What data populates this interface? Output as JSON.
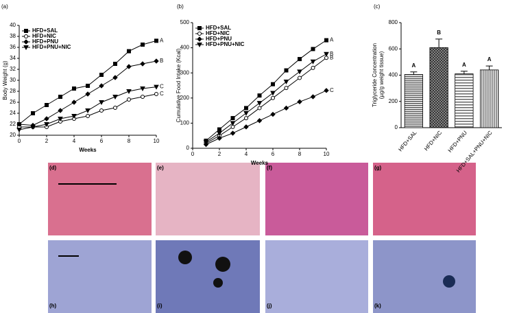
{
  "chart_data": [
    {
      "type": "line",
      "panel": "(a)",
      "xlabel": "Weeks",
      "ylabel": "Body Weight (g)",
      "x": [
        0,
        1,
        2,
        3,
        4,
        5,
        6,
        7,
        8,
        9,
        10
      ],
      "xlim": [
        0,
        10
      ],
      "xticks": [
        0,
        2,
        4,
        6,
        8,
        10
      ],
      "ylim": [
        20,
        40
      ],
      "yticks": [
        20,
        22,
        24,
        26,
        28,
        30,
        32,
        34,
        36,
        38,
        40
      ],
      "legend": "upper left",
      "series": [
        {
          "name": "HFD+SAL",
          "marker": "square",
          "color": "#000000",
          "label": "A",
          "values": [
            22,
            24,
            25.5,
            27,
            28.5,
            29,
            31,
            33,
            35.3,
            36.5,
            37.2
          ]
        },
        {
          "name": "HFD+NIC",
          "marker": "circle-open",
          "color": "#000000",
          "label": "C",
          "values": [
            21.5,
            21.5,
            21.5,
            22.5,
            23,
            23.5,
            24.5,
            25,
            26.5,
            27,
            27.5
          ]
        },
        {
          "name": "HFD+PNU",
          "marker": "diamond",
          "color": "#000000",
          "label": "B",
          "values": [
            22,
            21.8,
            23,
            24.5,
            26,
            27.5,
            29,
            30.5,
            32.5,
            33,
            33.5
          ]
        },
        {
          "name": "HFD+PNU+NIC",
          "marker": "triangle-down",
          "color": "#000000",
          "label": "C",
          "values": [
            21,
            21.5,
            22,
            23,
            23.5,
            24.5,
            26,
            27,
            28,
            28.5,
            28.8
          ]
        }
      ]
    },
    {
      "type": "line",
      "panel": "(b)",
      "xlabel": "Weeks",
      "ylabel": "Cumulative Food Intake (Kcal)",
      "x": [
        1,
        2,
        3,
        4,
        5,
        6,
        7,
        8,
        9,
        10
      ],
      "xlim": [
        0,
        10
      ],
      "xticks": [
        0,
        2,
        4,
        6,
        8,
        10
      ],
      "ylim": [
        0,
        500
      ],
      "yticks": [
        0,
        100,
        200,
        300,
        400,
        500
      ],
      "legend": "upper left",
      "series": [
        {
          "name": "HFD+SAL",
          "marker": "square",
          "color": "#000000",
          "label": "A",
          "values": [
            30,
            75,
            120,
            160,
            210,
            255,
            310,
            355,
            395,
            430
          ]
        },
        {
          "name": "HFD+NIC",
          "marker": "circle-open",
          "color": "#000000",
          "label": "B",
          "values": [
            20,
            50,
            85,
            120,
            160,
            200,
            240,
            280,
            320,
            360
          ]
        },
        {
          "name": "HFD+PNU",
          "marker": "diamond",
          "color": "#000000",
          "label": "C",
          "values": [
            15,
            40,
            60,
            85,
            110,
            135,
            160,
            185,
            205,
            230
          ]
        },
        {
          "name": "HFD+PNU+NIC",
          "marker": "triangle-down",
          "color": "#000000",
          "label": "B",
          "values": [
            25,
            60,
            100,
            140,
            180,
            220,
            265,
            305,
            345,
            375
          ]
        }
      ]
    },
    {
      "type": "bar",
      "panel": "(c)",
      "ylabel": [
        "Triglyceride Concentration",
        "(µg/g weight tissue)"
      ],
      "categories": [
        "HFD+SAL",
        "HFD+NIC",
        "HFD+PNU",
        "HFD+SAL+PNU+NIC"
      ],
      "values": [
        405,
        610,
        410,
        440
      ],
      "errors": [
        20,
        65,
        20,
        30
      ],
      "group_labels": [
        "A",
        "B",
        "A",
        "A"
      ],
      "colors": [
        "#8a8a8a",
        "#5a5a5a",
        "#b0b0b0",
        "#a0a0a0"
      ],
      "ylim": [
        0,
        800
      ],
      "yticks": [
        0,
        200,
        400,
        600,
        800
      ]
    }
  ],
  "images": {
    "labels": [
      "(d)",
      "(e)",
      "(f)",
      "(g)",
      "(h)",
      "(i)",
      "(j)",
      "(k)"
    ]
  }
}
